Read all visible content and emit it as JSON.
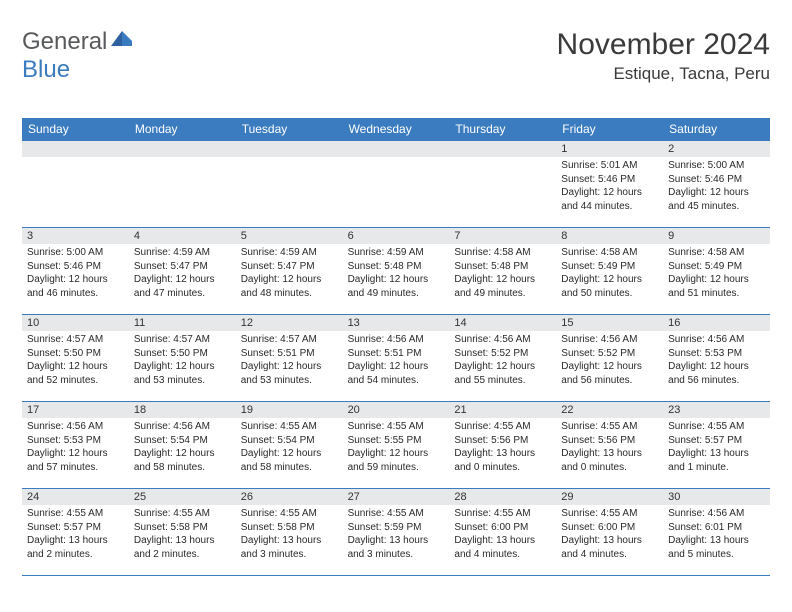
{
  "branding": {
    "word1": "General",
    "word2": "Blue",
    "color_general": "#57595b",
    "color_blue": "#3b7bbf"
  },
  "header": {
    "title": "November 2024",
    "location": "Estique, Tacna, Peru"
  },
  "styling": {
    "header_bg": "#3b7bbf",
    "header_text": "#ffffff",
    "band_bg": "#e7e8ea",
    "border_color": "#3b7bbf",
    "page_bg": "#ffffff",
    "text_color": "#2a2a2a",
    "title_fontsize": 30,
    "location_fontsize": 17,
    "weekday_fontsize": 12,
    "cell_fontsize": 10
  },
  "weekdays": [
    "Sunday",
    "Monday",
    "Tuesday",
    "Wednesday",
    "Thursday",
    "Friday",
    "Saturday"
  ],
  "weeks": [
    [
      {
        "empty": true
      },
      {
        "empty": true
      },
      {
        "empty": true
      },
      {
        "empty": true
      },
      {
        "empty": true
      },
      {
        "num": "1",
        "sunrise": "Sunrise: 5:01 AM",
        "sunset": "Sunset: 5:46 PM",
        "daylight1": "Daylight: 12 hours",
        "daylight2": "and 44 minutes."
      },
      {
        "num": "2",
        "sunrise": "Sunrise: 5:00 AM",
        "sunset": "Sunset: 5:46 PM",
        "daylight1": "Daylight: 12 hours",
        "daylight2": "and 45 minutes."
      }
    ],
    [
      {
        "num": "3",
        "sunrise": "Sunrise: 5:00 AM",
        "sunset": "Sunset: 5:46 PM",
        "daylight1": "Daylight: 12 hours",
        "daylight2": "and 46 minutes."
      },
      {
        "num": "4",
        "sunrise": "Sunrise: 4:59 AM",
        "sunset": "Sunset: 5:47 PM",
        "daylight1": "Daylight: 12 hours",
        "daylight2": "and 47 minutes."
      },
      {
        "num": "5",
        "sunrise": "Sunrise: 4:59 AM",
        "sunset": "Sunset: 5:47 PM",
        "daylight1": "Daylight: 12 hours",
        "daylight2": "and 48 minutes."
      },
      {
        "num": "6",
        "sunrise": "Sunrise: 4:59 AM",
        "sunset": "Sunset: 5:48 PM",
        "daylight1": "Daylight: 12 hours",
        "daylight2": "and 49 minutes."
      },
      {
        "num": "7",
        "sunrise": "Sunrise: 4:58 AM",
        "sunset": "Sunset: 5:48 PM",
        "daylight1": "Daylight: 12 hours",
        "daylight2": "and 49 minutes."
      },
      {
        "num": "8",
        "sunrise": "Sunrise: 4:58 AM",
        "sunset": "Sunset: 5:49 PM",
        "daylight1": "Daylight: 12 hours",
        "daylight2": "and 50 minutes."
      },
      {
        "num": "9",
        "sunrise": "Sunrise: 4:58 AM",
        "sunset": "Sunset: 5:49 PM",
        "daylight1": "Daylight: 12 hours",
        "daylight2": "and 51 minutes."
      }
    ],
    [
      {
        "num": "10",
        "sunrise": "Sunrise: 4:57 AM",
        "sunset": "Sunset: 5:50 PM",
        "daylight1": "Daylight: 12 hours",
        "daylight2": "and 52 minutes."
      },
      {
        "num": "11",
        "sunrise": "Sunrise: 4:57 AM",
        "sunset": "Sunset: 5:50 PM",
        "daylight1": "Daylight: 12 hours",
        "daylight2": "and 53 minutes."
      },
      {
        "num": "12",
        "sunrise": "Sunrise: 4:57 AM",
        "sunset": "Sunset: 5:51 PM",
        "daylight1": "Daylight: 12 hours",
        "daylight2": "and 53 minutes."
      },
      {
        "num": "13",
        "sunrise": "Sunrise: 4:56 AM",
        "sunset": "Sunset: 5:51 PM",
        "daylight1": "Daylight: 12 hours",
        "daylight2": "and 54 minutes."
      },
      {
        "num": "14",
        "sunrise": "Sunrise: 4:56 AM",
        "sunset": "Sunset: 5:52 PM",
        "daylight1": "Daylight: 12 hours",
        "daylight2": "and 55 minutes."
      },
      {
        "num": "15",
        "sunrise": "Sunrise: 4:56 AM",
        "sunset": "Sunset: 5:52 PM",
        "daylight1": "Daylight: 12 hours",
        "daylight2": "and 56 minutes."
      },
      {
        "num": "16",
        "sunrise": "Sunrise: 4:56 AM",
        "sunset": "Sunset: 5:53 PM",
        "daylight1": "Daylight: 12 hours",
        "daylight2": "and 56 minutes."
      }
    ],
    [
      {
        "num": "17",
        "sunrise": "Sunrise: 4:56 AM",
        "sunset": "Sunset: 5:53 PM",
        "daylight1": "Daylight: 12 hours",
        "daylight2": "and 57 minutes."
      },
      {
        "num": "18",
        "sunrise": "Sunrise: 4:56 AM",
        "sunset": "Sunset: 5:54 PM",
        "daylight1": "Daylight: 12 hours",
        "daylight2": "and 58 minutes."
      },
      {
        "num": "19",
        "sunrise": "Sunrise: 4:55 AM",
        "sunset": "Sunset: 5:54 PM",
        "daylight1": "Daylight: 12 hours",
        "daylight2": "and 58 minutes."
      },
      {
        "num": "20",
        "sunrise": "Sunrise: 4:55 AM",
        "sunset": "Sunset: 5:55 PM",
        "daylight1": "Daylight: 12 hours",
        "daylight2": "and 59 minutes."
      },
      {
        "num": "21",
        "sunrise": "Sunrise: 4:55 AM",
        "sunset": "Sunset: 5:56 PM",
        "daylight1": "Daylight: 13 hours",
        "daylight2": "and 0 minutes."
      },
      {
        "num": "22",
        "sunrise": "Sunrise: 4:55 AM",
        "sunset": "Sunset: 5:56 PM",
        "daylight1": "Daylight: 13 hours",
        "daylight2": "and 0 minutes."
      },
      {
        "num": "23",
        "sunrise": "Sunrise: 4:55 AM",
        "sunset": "Sunset: 5:57 PM",
        "daylight1": "Daylight: 13 hours",
        "daylight2": "and 1 minute."
      }
    ],
    [
      {
        "num": "24",
        "sunrise": "Sunrise: 4:55 AM",
        "sunset": "Sunset: 5:57 PM",
        "daylight1": "Daylight: 13 hours",
        "daylight2": "and 2 minutes."
      },
      {
        "num": "25",
        "sunrise": "Sunrise: 4:55 AM",
        "sunset": "Sunset: 5:58 PM",
        "daylight1": "Daylight: 13 hours",
        "daylight2": "and 2 minutes."
      },
      {
        "num": "26",
        "sunrise": "Sunrise: 4:55 AM",
        "sunset": "Sunset: 5:58 PM",
        "daylight1": "Daylight: 13 hours",
        "daylight2": "and 3 minutes."
      },
      {
        "num": "27",
        "sunrise": "Sunrise: 4:55 AM",
        "sunset": "Sunset: 5:59 PM",
        "daylight1": "Daylight: 13 hours",
        "daylight2": "and 3 minutes."
      },
      {
        "num": "28",
        "sunrise": "Sunrise: 4:55 AM",
        "sunset": "Sunset: 6:00 PM",
        "daylight1": "Daylight: 13 hours",
        "daylight2": "and 4 minutes."
      },
      {
        "num": "29",
        "sunrise": "Sunrise: 4:55 AM",
        "sunset": "Sunset: 6:00 PM",
        "daylight1": "Daylight: 13 hours",
        "daylight2": "and 4 minutes."
      },
      {
        "num": "30",
        "sunrise": "Sunrise: 4:56 AM",
        "sunset": "Sunset: 6:01 PM",
        "daylight1": "Daylight: 13 hours",
        "daylight2": "and 5 minutes."
      }
    ]
  ]
}
